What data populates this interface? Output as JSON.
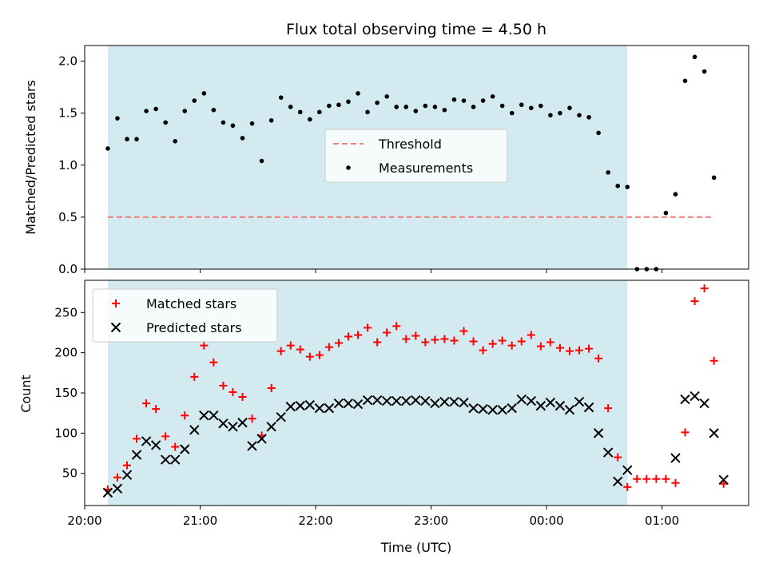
{
  "chart_data": [
    {
      "type": "scatter",
      "title": "Flux total observing time = 4.50 h",
      "xlabel": "",
      "ylabel": "Matched/Predicted stars",
      "xlim": [
        "20:00",
        "01:45"
      ],
      "ylim": [
        0,
        2.15
      ],
      "yticks": [
        "0.0",
        "0.5",
        "1.0",
        "1.5",
        "2.0"
      ],
      "xticks": [],
      "grid": false,
      "legend": {
        "placement": "center",
        "entries": [
          "Threshold",
          "Measurements"
        ]
      },
      "shaded_span": {
        "start": "20:12",
        "end": "00:42",
        "color": "#d3eaf0"
      },
      "threshold": {
        "name": "Threshold",
        "value": 0.5,
        "x_start": "20:12",
        "x_end": "01:27",
        "color": "#f08080",
        "style": "dashed"
      },
      "series": [
        {
          "name": "Measurements",
          "color": "#000000",
          "marker": "dot",
          "points": [
            [
              "20:12",
              1.16
            ],
            [
              "20:17",
              1.45
            ],
            [
              "20:22",
              1.25
            ],
            [
              "20:27",
              1.25
            ],
            [
              "20:32",
              1.52
            ],
            [
              "20:37",
              1.54
            ],
            [
              "20:42",
              1.41
            ],
            [
              "20:47",
              1.23
            ],
            [
              "20:52",
              1.52
            ],
            [
              "20:57",
              1.62
            ],
            [
              "21:02",
              1.69
            ],
            [
              "21:07",
              1.53
            ],
            [
              "21:12",
              1.41
            ],
            [
              "21:17",
              1.38
            ],
            [
              "21:22",
              1.26
            ],
            [
              "21:27",
              1.4
            ],
            [
              "21:32",
              1.04
            ],
            [
              "21:37",
              1.43
            ],
            [
              "21:42",
              1.65
            ],
            [
              "21:47",
              1.56
            ],
            [
              "21:52",
              1.51
            ],
            [
              "21:57",
              1.44
            ],
            [
              "22:02",
              1.51
            ],
            [
              "22:07",
              1.57
            ],
            [
              "22:12",
              1.58
            ],
            [
              "22:17",
              1.61
            ],
            [
              "22:22",
              1.69
            ],
            [
              "22:27",
              1.51
            ],
            [
              "22:32",
              1.6
            ],
            [
              "22:37",
              1.66
            ],
            [
              "22:42",
              1.56
            ],
            [
              "22:47",
              1.56
            ],
            [
              "22:52",
              1.52
            ],
            [
              "22:57",
              1.57
            ],
            [
              "23:02",
              1.56
            ],
            [
              "23:07",
              1.53
            ],
            [
              "23:12",
              1.63
            ],
            [
              "23:17",
              1.62
            ],
            [
              "23:22",
              1.56
            ],
            [
              "23:27",
              1.62
            ],
            [
              "23:32",
              1.66
            ],
            [
              "23:37",
              1.57
            ],
            [
              "23:42",
              1.5
            ],
            [
              "23:47",
              1.58
            ],
            [
              "23:52",
              1.55
            ],
            [
              "23:57",
              1.57
            ],
            [
              "00:02",
              1.48
            ],
            [
              "00:07",
              1.5
            ],
            [
              "00:12",
              1.55
            ],
            [
              "00:17",
              1.48
            ],
            [
              "00:22",
              1.46
            ],
            [
              "00:27",
              1.31
            ],
            [
              "00:32",
              0.93
            ],
            [
              "00:37",
              0.8
            ],
            [
              "00:42",
              0.79
            ],
            [
              "00:47",
              0.0
            ],
            [
              "00:52",
              0.0
            ],
            [
              "00:57",
              0.0
            ],
            [
              "01:02",
              0.54
            ],
            [
              "01:07",
              0.72
            ],
            [
              "01:12",
              1.81
            ],
            [
              "01:17",
              2.04
            ],
            [
              "01:22",
              1.9
            ],
            [
              "01:27",
              0.88
            ]
          ]
        }
      ]
    },
    {
      "type": "scatter",
      "title": "",
      "xlabel": "Time (UTC)",
      "ylabel": "Count",
      "xlim": [
        "20:00",
        "01:45"
      ],
      "ylim": [
        10,
        290
      ],
      "yticks": [
        "50",
        "100",
        "150",
        "200",
        "250"
      ],
      "xticks": [
        "20:00",
        "21:00",
        "22:00",
        "23:00",
        "00:00",
        "01:00"
      ],
      "grid": false,
      "legend": {
        "placement": "top-left",
        "entries": [
          "Matched stars",
          "Predicted stars"
        ]
      },
      "shaded_span": {
        "start": "20:12",
        "end": "00:42",
        "color": "#d3eaf0"
      },
      "series": [
        {
          "name": "Matched stars",
          "color": "#ff0000",
          "marker": "plus",
          "points": [
            [
              "20:12",
              30
            ],
            [
              "20:17",
              45
            ],
            [
              "20:22",
              60
            ],
            [
              "20:27",
              93
            ],
            [
              "20:32",
              137
            ],
            [
              "20:37",
              130
            ],
            [
              "20:42",
              96
            ],
            [
              "20:47",
              83
            ],
            [
              "20:52",
              122
            ],
            [
              "20:57",
              170
            ],
            [
              "21:02",
              209
            ],
            [
              "21:07",
              188
            ],
            [
              "21:12",
              159
            ],
            [
              "21:17",
              151
            ],
            [
              "21:22",
              145
            ],
            [
              "21:27",
              118
            ],
            [
              "21:32",
              97
            ],
            [
              "21:37",
              156
            ],
            [
              "21:42",
              202
            ],
            [
              "21:47",
              209
            ],
            [
              "21:52",
              204
            ],
            [
              "21:57",
              195
            ],
            [
              "22:02",
              197
            ],
            [
              "22:07",
              207
            ],
            [
              "22:12",
              212
            ],
            [
              "22:17",
              220
            ],
            [
              "22:22",
              222
            ],
            [
              "22:27",
              231
            ],
            [
              "22:32",
              213
            ],
            [
              "22:37",
              225
            ],
            [
              "22:42",
              233
            ],
            [
              "22:47",
              217
            ],
            [
              "22:52",
              221
            ],
            [
              "22:57",
              213
            ],
            [
              "23:02",
              216
            ],
            [
              "23:07",
              217
            ],
            [
              "23:12",
              215
            ],
            [
              "23:17",
              227
            ],
            [
              "23:22",
              214
            ],
            [
              "23:27",
              203
            ],
            [
              "23:32",
              211
            ],
            [
              "23:37",
              215
            ],
            [
              "23:42",
              209
            ],
            [
              "23:47",
              214
            ],
            [
              "23:52",
              222
            ],
            [
              "23:57",
              208
            ],
            [
              "00:02",
              213
            ],
            [
              "00:07",
              206
            ],
            [
              "00:12",
              202
            ],
            [
              "00:17",
              203
            ],
            [
              "00:22",
              205
            ],
            [
              "00:27",
              193
            ],
            [
              "00:32",
              131
            ],
            [
              "00:37",
              70
            ],
            [
              "00:42",
              33
            ],
            [
              "00:47",
              43
            ],
            [
              "00:52",
              43
            ],
            [
              "00:57",
              43
            ],
            [
              "01:02",
              43
            ],
            [
              "01:07",
              38
            ],
            [
              "01:12",
              101
            ],
            [
              "01:17",
              264
            ],
            [
              "01:22",
              280
            ],
            [
              "01:27",
              190
            ],
            [
              "01:32",
              37
            ]
          ]
        },
        {
          "name": "Predicted stars",
          "color": "#000000",
          "marker": "x",
          "points": [
            [
              "20:12",
              26
            ],
            [
              "20:17",
              31
            ],
            [
              "20:22",
              48
            ],
            [
              "20:27",
              73
            ],
            [
              "20:32",
              90
            ],
            [
              "20:37",
              85
            ],
            [
              "20:42",
              67
            ],
            [
              "20:47",
              67
            ],
            [
              "20:52",
              80
            ],
            [
              "20:57",
              104
            ],
            [
              "21:02",
              122
            ],
            [
              "21:07",
              122
            ],
            [
              "21:12",
              112
            ],
            [
              "21:17",
              108
            ],
            [
              "21:22",
              113
            ],
            [
              "21:27",
              84
            ],
            [
              "21:32",
              93
            ],
            [
              "21:37",
              108
            ],
            [
              "21:42",
              120
            ],
            [
              "21:47",
              133
            ],
            [
              "21:52",
              134
            ],
            [
              "21:57",
              135
            ],
            [
              "22:02",
              131
            ],
            [
              "22:07",
              131
            ],
            [
              "22:12",
              137
            ],
            [
              "22:17",
              137
            ],
            [
              "22:22",
              136
            ],
            [
              "22:27",
              141
            ],
            [
              "22:32",
              141
            ],
            [
              "22:37",
              140
            ],
            [
              "22:42",
              140
            ],
            [
              "22:47",
              140
            ],
            [
              "22:52",
              141
            ],
            [
              "22:57",
              140
            ],
            [
              "23:02",
              137
            ],
            [
              "23:07",
              139
            ],
            [
              "23:12",
              139
            ],
            [
              "23:17",
              138
            ],
            [
              "23:22",
              131
            ],
            [
              "23:27",
              130
            ],
            [
              "23:32",
              129
            ],
            [
              "23:37",
              129
            ],
            [
              "23:42",
              131
            ],
            [
              "23:47",
              142
            ],
            [
              "23:52",
              140
            ],
            [
              "23:57",
              134
            ],
            [
              "00:02",
              138
            ],
            [
              "00:07",
              134
            ],
            [
              "00:12",
              129
            ],
            [
              "00:17",
              139
            ],
            [
              "00:22",
              132
            ],
            [
              "00:27",
              100
            ],
            [
              "00:32",
              76
            ],
            [
              "00:37",
              40
            ],
            [
              "00:42",
              54
            ],
            [
              "01:07",
              69
            ],
            [
              "01:12",
              142
            ],
            [
              "01:17",
              146
            ],
            [
              "01:22",
              137
            ],
            [
              "01:27",
              100
            ],
            [
              "01:32",
              42
            ]
          ]
        }
      ]
    }
  ]
}
